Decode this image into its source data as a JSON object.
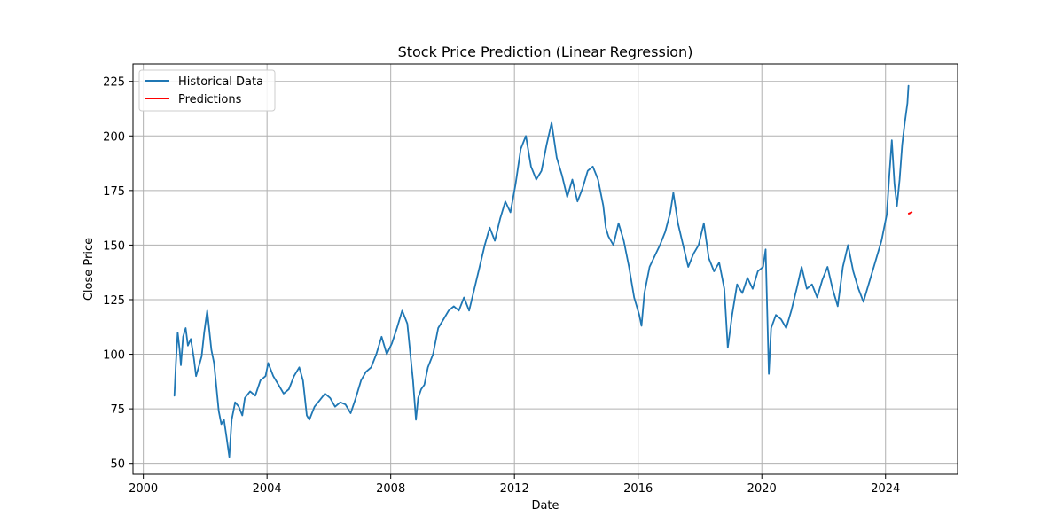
{
  "chart_data": {
    "type": "line",
    "title": "Stock Price Prediction (Linear Regression)",
    "xlabel": "Date",
    "ylabel": "Close Price",
    "xlim": [
      "1999-09-01",
      "2026-05-01"
    ],
    "ylim": [
      45,
      233
    ],
    "x_ticks": [
      "2000",
      "2004",
      "2008",
      "2012",
      "2016",
      "2020",
      "2024"
    ],
    "y_ticks": [
      50,
      75,
      100,
      125,
      150,
      175,
      200,
      225
    ],
    "grid": true,
    "legend_position": "top-left",
    "series": [
      {
        "name": "Historical Data",
        "color": "#1f77b4",
        "points": [
          [
            "2001-01-02",
            81
          ],
          [
            "2001-01-20",
            96
          ],
          [
            "2001-02-10",
            110
          ],
          [
            "2001-03-05",
            102
          ],
          [
            "2001-03-20",
            95
          ],
          [
            "2001-04-15",
            108
          ],
          [
            "2001-05-15",
            112
          ],
          [
            "2001-06-10",
            104
          ],
          [
            "2001-07-15",
            107
          ],
          [
            "2001-08-20",
            98
          ],
          [
            "2001-09-15",
            90
          ],
          [
            "2001-10-15",
            94
          ],
          [
            "2001-11-20",
            99
          ],
          [
            "2001-12-20",
            110
          ],
          [
            "2002-01-25",
            120
          ],
          [
            "2002-02-15",
            112
          ],
          [
            "2002-03-15",
            102
          ],
          [
            "2002-04-15",
            96
          ],
          [
            "2002-05-10",
            86
          ],
          [
            "2002-06-10",
            74
          ],
          [
            "2002-07-10",
            68
          ],
          [
            "2002-08-10",
            70
          ],
          [
            "2002-09-10",
            62
          ],
          [
            "2002-10-12",
            53
          ],
          [
            "2002-11-10",
            70
          ],
          [
            "2002-12-20",
            78
          ],
          [
            "2003-02-01",
            76
          ],
          [
            "2003-03-15",
            72
          ],
          [
            "2003-04-15",
            80
          ],
          [
            "2003-06-15",
            83
          ],
          [
            "2003-08-15",
            81
          ],
          [
            "2003-10-15",
            88
          ],
          [
            "2003-12-15",
            90
          ],
          [
            "2004-01-15",
            96
          ],
          [
            "2004-03-15",
            90
          ],
          [
            "2004-05-15",
            86
          ],
          [
            "2004-07-15",
            82
          ],
          [
            "2004-09-15",
            84
          ],
          [
            "2004-11-15",
            90
          ],
          [
            "2005-01-15",
            94
          ],
          [
            "2005-03-01",
            88
          ],
          [
            "2005-04-15",
            72
          ],
          [
            "2005-05-15",
            70
          ],
          [
            "2005-07-15",
            76
          ],
          [
            "2005-09-15",
            79
          ],
          [
            "2005-11-15",
            82
          ],
          [
            "2006-01-15",
            80
          ],
          [
            "2006-03-15",
            76
          ],
          [
            "2006-05-15",
            78
          ],
          [
            "2006-07-15",
            77
          ],
          [
            "2006-09-15",
            73
          ],
          [
            "2006-11-15",
            80
          ],
          [
            "2007-01-15",
            88
          ],
          [
            "2007-03-15",
            92
          ],
          [
            "2007-05-15",
            94
          ],
          [
            "2007-07-15",
            100
          ],
          [
            "2007-09-15",
            108
          ],
          [
            "2007-11-15",
            100
          ],
          [
            "2008-01-15",
            105
          ],
          [
            "2008-03-15",
            112
          ],
          [
            "2008-05-15",
            120
          ],
          [
            "2008-07-15",
            114
          ],
          [
            "2008-08-20",
            100
          ],
          [
            "2008-09-20",
            88
          ],
          [
            "2008-10-25",
            70
          ],
          [
            "2008-11-20",
            80
          ],
          [
            "2008-12-25",
            84
          ],
          [
            "2009-02-01",
            86
          ],
          [
            "2009-03-15",
            94
          ],
          [
            "2009-05-15",
            100
          ],
          [
            "2009-07-15",
            112
          ],
          [
            "2009-09-15",
            116
          ],
          [
            "2009-11-15",
            120
          ],
          [
            "2010-01-15",
            122
          ],
          [
            "2010-03-15",
            120
          ],
          [
            "2010-05-15",
            126
          ],
          [
            "2010-07-15",
            120
          ],
          [
            "2010-09-15",
            130
          ],
          [
            "2010-11-15",
            140
          ],
          [
            "2011-01-15",
            150
          ],
          [
            "2011-03-15",
            158
          ],
          [
            "2011-05-15",
            152
          ],
          [
            "2011-07-15",
            162
          ],
          [
            "2011-09-15",
            170
          ],
          [
            "2011-11-15",
            165
          ],
          [
            "2012-01-15",
            178
          ],
          [
            "2012-03-15",
            194
          ],
          [
            "2012-05-15",
            200
          ],
          [
            "2012-07-15",
            186
          ],
          [
            "2012-09-15",
            180
          ],
          [
            "2012-11-15",
            184
          ],
          [
            "2013-01-15",
            196
          ],
          [
            "2013-03-15",
            206
          ],
          [
            "2013-05-15",
            190
          ],
          [
            "2013-07-15",
            182
          ],
          [
            "2013-09-15",
            172
          ],
          [
            "2013-11-15",
            180
          ],
          [
            "2014-01-15",
            170
          ],
          [
            "2014-03-15",
            176
          ],
          [
            "2014-05-15",
            184
          ],
          [
            "2014-07-15",
            186
          ],
          [
            "2014-09-15",
            180
          ],
          [
            "2014-11-15",
            168
          ],
          [
            "2014-12-15",
            158
          ],
          [
            "2015-01-15",
            154
          ],
          [
            "2015-03-15",
            150
          ],
          [
            "2015-05-15",
            160
          ],
          [
            "2015-07-15",
            152
          ],
          [
            "2015-09-15",
            140
          ],
          [
            "2015-11-15",
            126
          ],
          [
            "2016-01-15",
            118
          ],
          [
            "2016-02-10",
            113
          ],
          [
            "2016-03-15",
            128
          ],
          [
            "2016-05-15",
            140
          ],
          [
            "2016-07-15",
            145
          ],
          [
            "2016-09-15",
            150
          ],
          [
            "2016-11-15",
            156
          ],
          [
            "2017-01-15",
            165
          ],
          [
            "2017-02-20",
            174
          ],
          [
            "2017-04-15",
            160
          ],
          [
            "2017-06-15",
            150
          ],
          [
            "2017-08-15",
            140
          ],
          [
            "2017-10-15",
            146
          ],
          [
            "2017-12-15",
            150
          ],
          [
            "2018-02-15",
            160
          ],
          [
            "2018-04-15",
            144
          ],
          [
            "2018-06-15",
            138
          ],
          [
            "2018-08-15",
            142
          ],
          [
            "2018-10-15",
            130
          ],
          [
            "2018-11-25",
            103
          ],
          [
            "2019-01-15",
            118
          ],
          [
            "2019-03-15",
            132
          ],
          [
            "2019-05-15",
            128
          ],
          [
            "2019-07-15",
            135
          ],
          [
            "2019-09-15",
            130
          ],
          [
            "2019-11-15",
            138
          ],
          [
            "2020-01-15",
            140
          ],
          [
            "2020-02-15",
            148
          ],
          [
            "2020-03-23",
            91
          ],
          [
            "2020-04-20",
            112
          ],
          [
            "2020-06-15",
            118
          ],
          [
            "2020-08-15",
            116
          ],
          [
            "2020-10-15",
            112
          ],
          [
            "2020-12-15",
            120
          ],
          [
            "2021-02-15",
            130
          ],
          [
            "2021-04-15",
            140
          ],
          [
            "2021-06-15",
            130
          ],
          [
            "2021-08-15",
            132
          ],
          [
            "2021-10-15",
            126
          ],
          [
            "2021-12-15",
            134
          ],
          [
            "2022-02-15",
            140
          ],
          [
            "2022-04-15",
            130
          ],
          [
            "2022-06-15",
            122
          ],
          [
            "2022-08-15",
            140
          ],
          [
            "2022-10-15",
            150
          ],
          [
            "2022-12-15",
            138
          ],
          [
            "2023-02-15",
            130
          ],
          [
            "2023-04-15",
            124
          ],
          [
            "2023-06-15",
            132
          ],
          [
            "2023-08-15",
            140
          ],
          [
            "2023-10-15",
            148
          ],
          [
            "2023-11-15",
            152
          ],
          [
            "2024-01-15",
            164
          ],
          [
            "2024-02-15",
            182
          ],
          [
            "2024-03-15",
            198
          ],
          [
            "2024-04-15",
            178
          ],
          [
            "2024-05-15",
            168
          ],
          [
            "2024-06-15",
            180
          ],
          [
            "2024-07-15",
            196
          ],
          [
            "2024-08-15",
            206
          ],
          [
            "2024-09-15",
            215
          ],
          [
            "2024-09-28",
            223
          ]
        ]
      },
      {
        "name": "Predictions",
        "color": "#ff0000",
        "points": [
          [
            "2024-10-01",
            164.4
          ],
          [
            "2024-10-20",
            164.7
          ],
          [
            "2024-11-05",
            165.0
          ]
        ]
      }
    ]
  }
}
